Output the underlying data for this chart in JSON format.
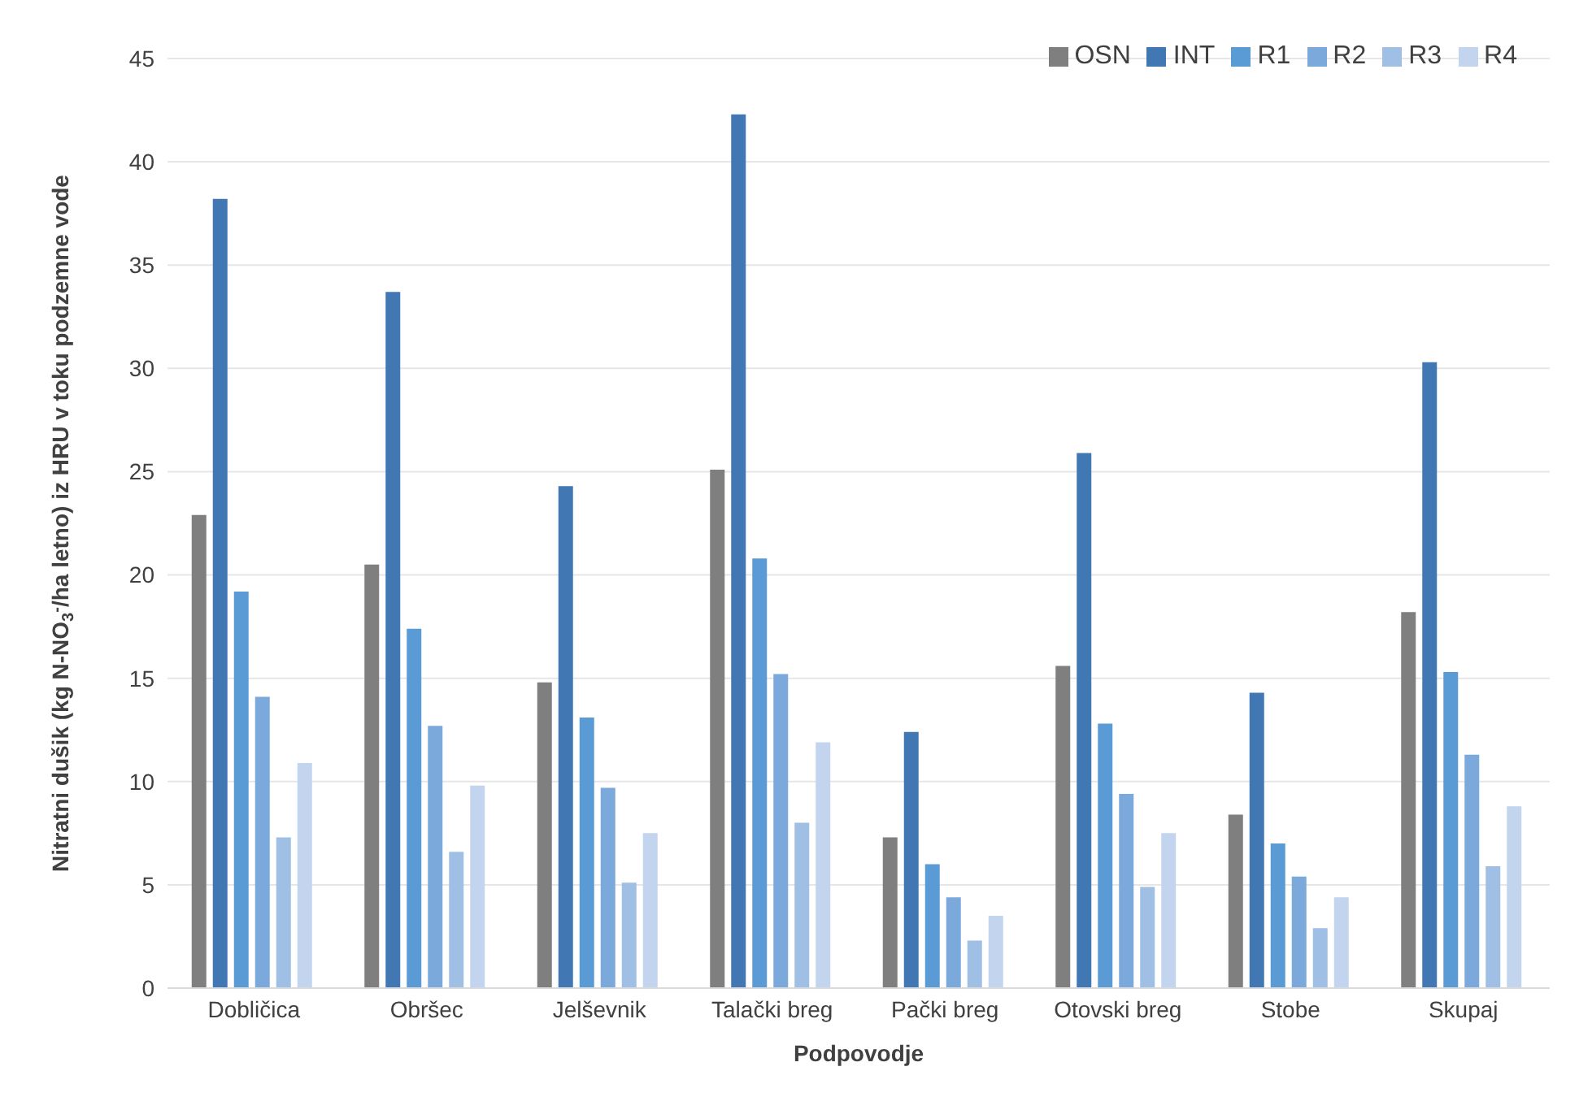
{
  "chart_data": {
    "type": "bar",
    "xlabel": "Podpovodje",
    "ylabel": "Nitratni dušik (kg N-NO$_{3}$$^{-}$/ha letno) iz HRU v toku podzemne vode",
    "categories": [
      "Dobličica",
      "Obršec",
      "Jelševnik",
      "Talački breg",
      "Pački breg",
      "Otovski breg",
      "Stobe",
      "Skupaj"
    ],
    "series": [
      {
        "name": "OSN",
        "color": "#7f7f7f",
        "values": [
          22.9,
          20.5,
          14.8,
          25.1,
          7.3,
          15.6,
          8.4,
          18.2
        ]
      },
      {
        "name": "INT",
        "color": "#4178b4",
        "values": [
          38.2,
          33.7,
          24.3,
          42.3,
          12.4,
          25.9,
          14.3,
          30.3
        ]
      },
      {
        "name": "R1",
        "color": "#5b9bd5",
        "values": [
          19.2,
          17.4,
          13.1,
          20.8,
          6.0,
          12.8,
          7.0,
          15.3
        ]
      },
      {
        "name": "R2",
        "color": "#7ca9dc",
        "values": [
          14.1,
          12.7,
          9.7,
          15.2,
          4.4,
          9.4,
          5.4,
          11.3
        ]
      },
      {
        "name": "R3",
        "color": "#9fbfe5",
        "values": [
          7.3,
          6.6,
          5.1,
          8.0,
          2.3,
          4.9,
          2.9,
          5.9
        ]
      },
      {
        "name": "R4",
        "color": "#c3d5ee",
        "values": [
          10.9,
          9.8,
          7.5,
          11.9,
          3.5,
          7.5,
          4.4,
          8.8
        ]
      }
    ],
    "ylim": [
      0,
      45
    ],
    "yticks": [
      0,
      5,
      10,
      15,
      20,
      25,
      30,
      35,
      40,
      45
    ],
    "grid": "y",
    "legend": "top right"
  }
}
